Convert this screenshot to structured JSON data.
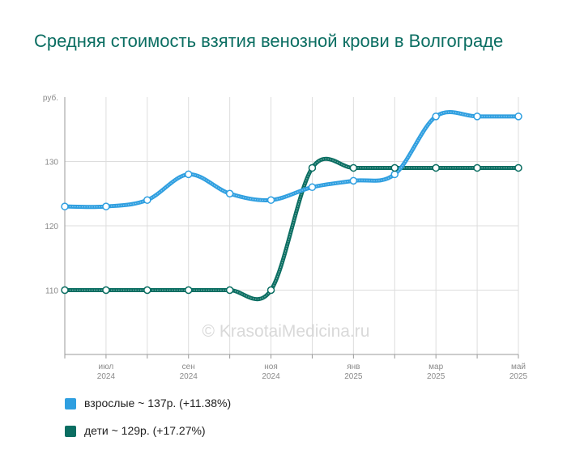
{
  "title": "Средняя стоимость взятия венозной крови в Волгограде",
  "watermark": "© KrasotaiMedicina.ru",
  "chart_data": {
    "type": "line",
    "ylabel": "руб.",
    "ylim": [
      100,
      140
    ],
    "yticks": [
      110,
      120,
      130
    ],
    "x": [
      "2024-06",
      "2024-07",
      "2024-08",
      "2024-09",
      "2024-10",
      "2024-11",
      "2024-12",
      "2025-01",
      "2025-02",
      "2025-03",
      "2025-04",
      "2025-05"
    ],
    "xtick_labels": [
      {
        "month": "июл",
        "year": "2024",
        "index": 1
      },
      {
        "month": "сен",
        "year": "2024",
        "index": 3
      },
      {
        "month": "ноя",
        "year": "2024",
        "index": 5
      },
      {
        "month": "янв",
        "year": "2025",
        "index": 7
      },
      {
        "month": "мар",
        "year": "2025",
        "index": 9
      },
      {
        "month": "май",
        "year": "2025",
        "index": 11
      }
    ],
    "grid": true,
    "legend_position": "bottom-left",
    "series": [
      {
        "name": "взрослые ~ 137р. (+11.38%)",
        "color": "#2f9fe0",
        "values": [
          123,
          123,
          124,
          128,
          125,
          124,
          126,
          127,
          128,
          137,
          137,
          137
        ]
      },
      {
        "name": "дети ~ 129р. (+17.27%)",
        "color": "#0b6e62",
        "values": [
          110,
          110,
          110,
          110,
          110,
          110,
          129,
          129,
          129,
          129,
          129,
          129
        ]
      }
    ]
  }
}
